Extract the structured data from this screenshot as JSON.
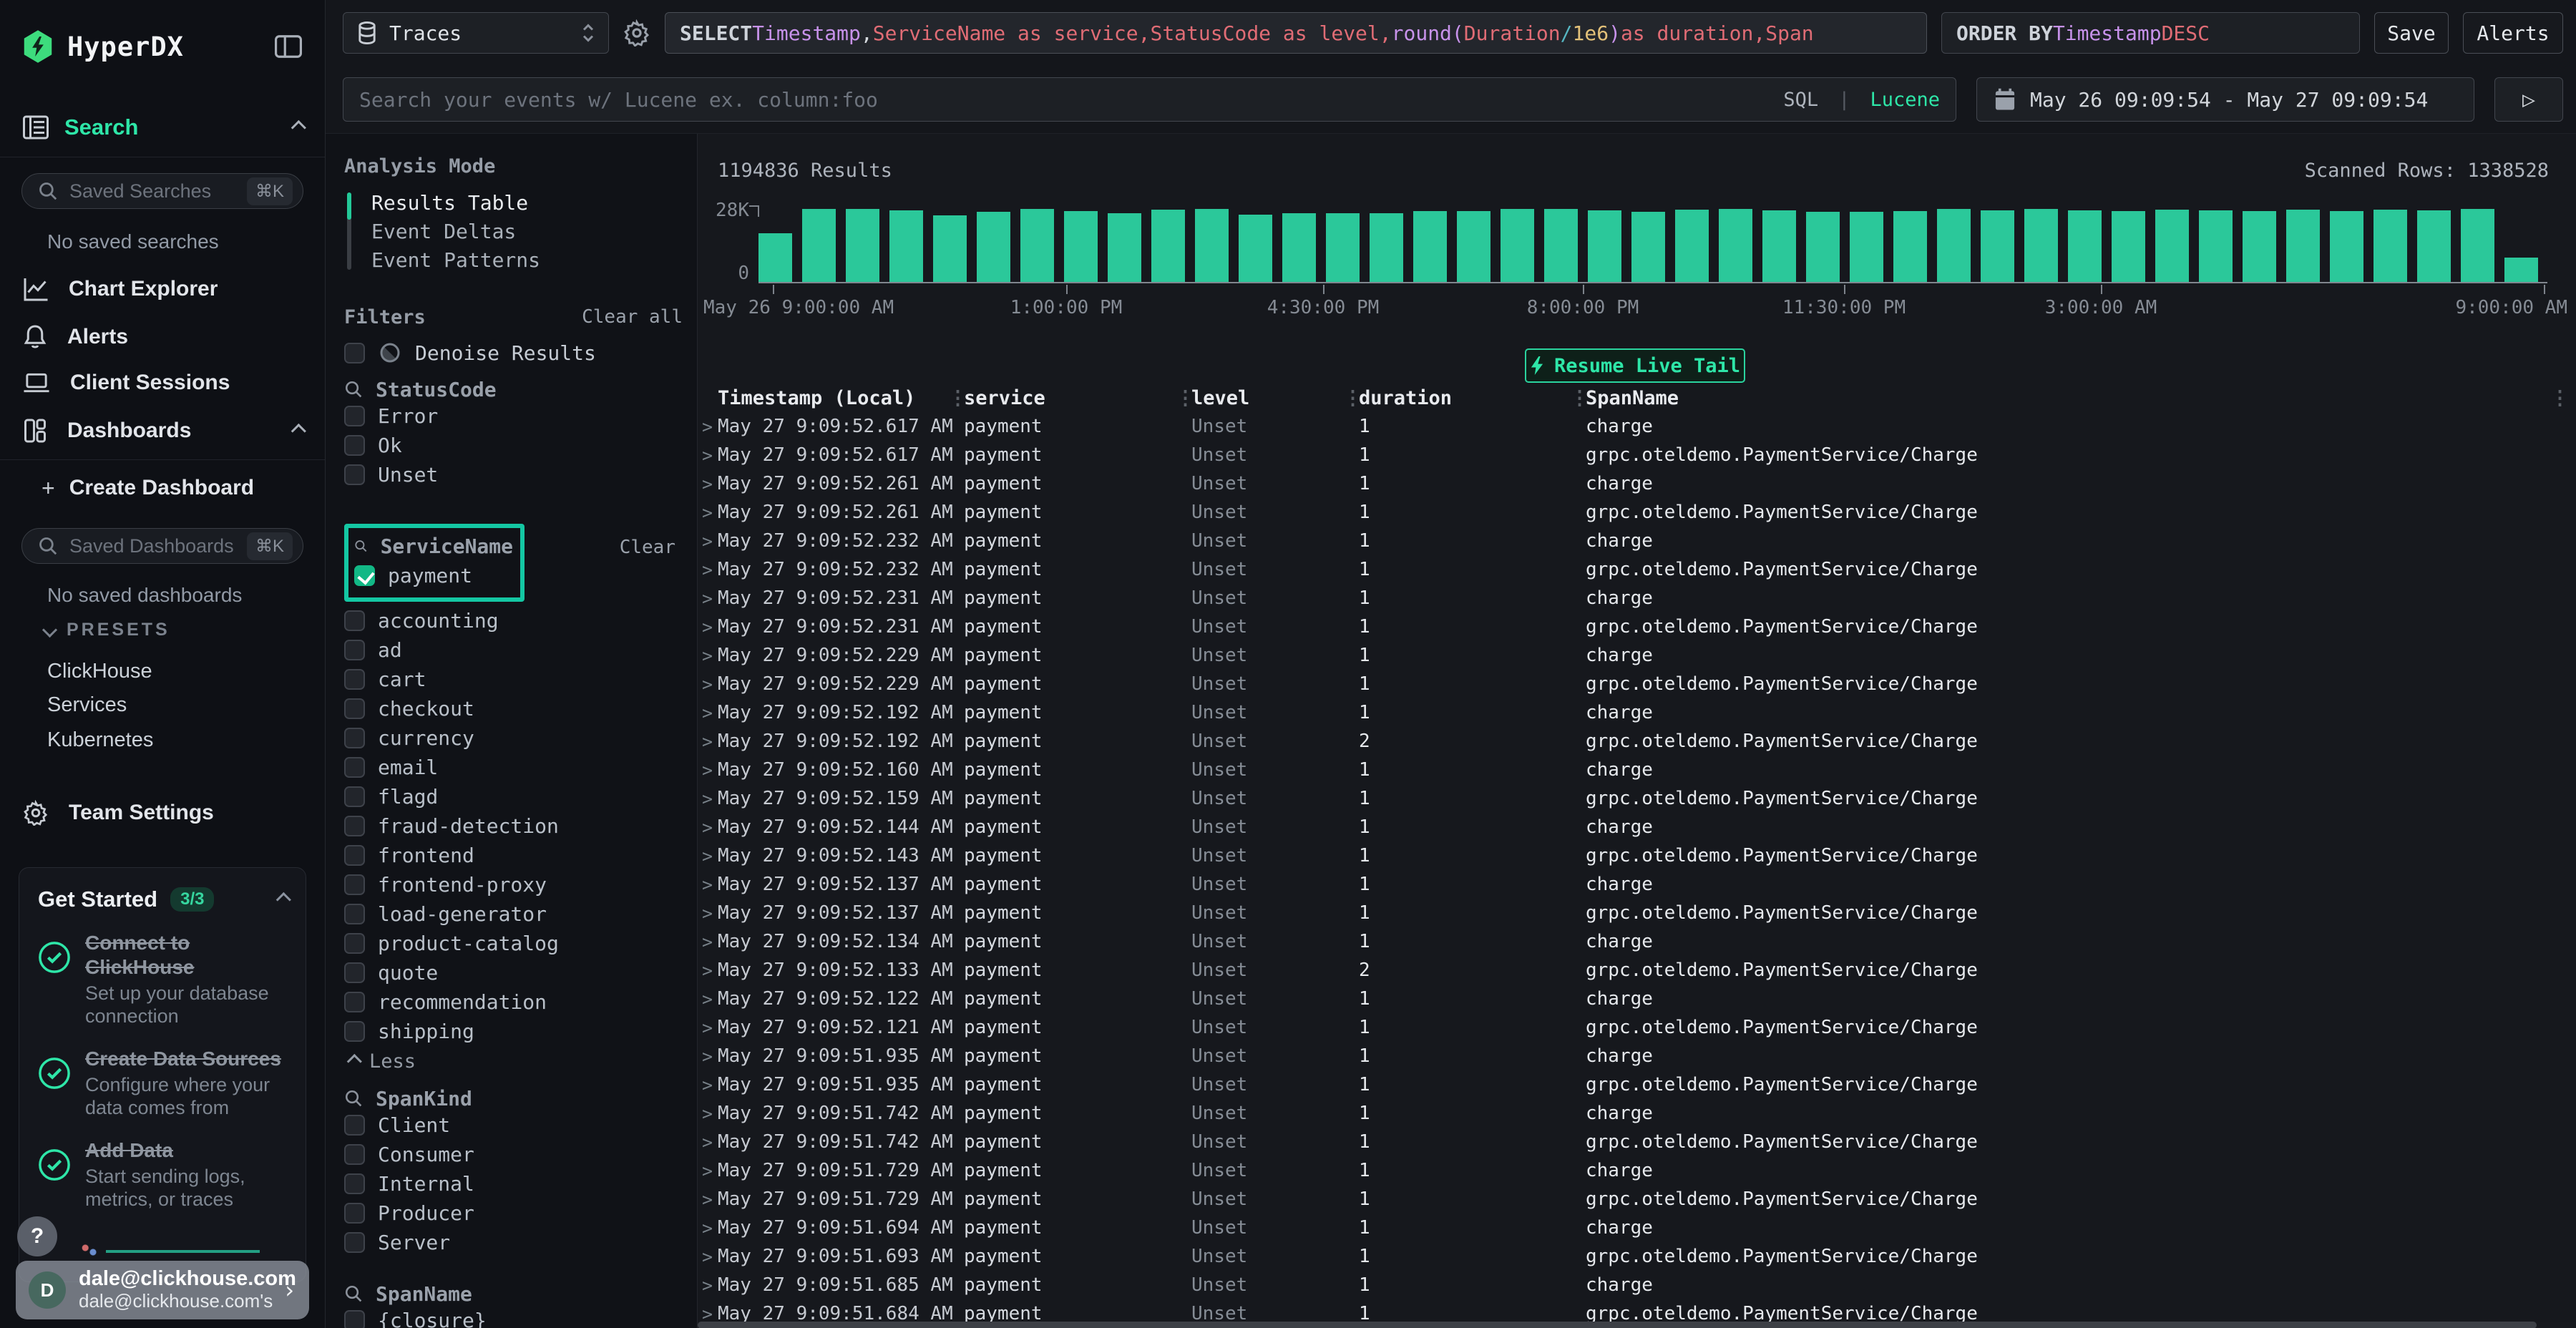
{
  "sidebar": {
    "brand": "HyperDX",
    "search_section": "Search",
    "saved_searches_placeholder": "Saved Searches",
    "saved_dashboards_placeholder": "Saved Dashboards",
    "shortcut": "⌘K",
    "no_saved_searches": "No saved searches",
    "no_saved_dashboards": "No saved dashboards",
    "nav": [
      {
        "label": "Chart Explorer",
        "icon": "chart-icon"
      },
      {
        "label": "Alerts",
        "icon": "bell-icon"
      },
      {
        "label": "Client Sessions",
        "icon": "laptop-icon"
      },
      {
        "label": "Dashboards",
        "icon": "grid-icon",
        "chevron": "up"
      }
    ],
    "create_dashboard_plus": "+",
    "create_dashboard": "Create Dashboard",
    "presets_label": "PRESETS",
    "presets": [
      "ClickHouse",
      "Services",
      "Kubernetes"
    ],
    "team_settings": "Team Settings",
    "get_started": {
      "title": "Get Started",
      "badge": "3/3",
      "steps": [
        {
          "title": "Connect to ClickHouse",
          "subtitle": "Set up your database connection"
        },
        {
          "title": "Create Data Sources",
          "subtitle": "Configure where your data comes from"
        },
        {
          "title": "Add Data",
          "subtitle": "Start sending logs, metrics, or traces"
        }
      ]
    },
    "help_label": "?",
    "user": {
      "initial": "D",
      "email": "dale@clickhouse.com",
      "subtitle": "dale@clickhouse.com's"
    }
  },
  "topbar": {
    "source": "Traces",
    "sql_tokens": [
      {
        "t": "SELECT ",
        "c": "kw"
      },
      {
        "t": "Timestamp",
        "c": "purple"
      },
      {
        "t": ", ",
        "c": "fg"
      },
      {
        "t": "ServiceName as service",
        "c": "red"
      },
      {
        "t": ", ",
        "c": "red"
      },
      {
        "t": "StatusCode as level",
        "c": "red"
      },
      {
        "t": ", ",
        "c": "red"
      },
      {
        "t": "round",
        "c": "purple"
      },
      {
        "t": "(",
        "c": "purple"
      },
      {
        "t": "Duration",
        "c": "red"
      },
      {
        "t": " / ",
        "c": "cyan"
      },
      {
        "t": "1e6",
        "c": "yellow"
      },
      {
        "t": ")",
        "c": "purple"
      },
      {
        "t": " as duration",
        "c": "red"
      },
      {
        "t": ", ",
        "c": "red"
      },
      {
        "t": "Span",
        "c": "red"
      }
    ],
    "order_tokens": [
      {
        "t": "ORDER BY ",
        "c": "kw"
      },
      {
        "t": "Timestamp ",
        "c": "purple"
      },
      {
        "t": "DESC",
        "c": "red"
      }
    ],
    "save": "Save",
    "alerts": "Alerts",
    "search_placeholder": "Search your events w/ Lucene ex. column:foo",
    "mode_sql": "SQL",
    "mode_divider": "|",
    "mode_lucene": "Lucene",
    "date_range": "May 26 09:09:54 - May 27 09:09:54",
    "play": "▷"
  },
  "analysis": {
    "title": "Analysis Mode",
    "modes": [
      "Results Table",
      "Event Deltas",
      "Event Patterns"
    ],
    "active_index": 0
  },
  "filters": {
    "title": "Filters",
    "clear_all": "Clear all",
    "denoise": "Denoise Results",
    "statuscode": {
      "name": "StatusCode",
      "items": [
        "Error",
        "Ok",
        "Unset"
      ]
    },
    "servicename": {
      "name": "ServiceName",
      "clear": "Clear",
      "checked_item": "payment",
      "items": [
        "accounting",
        "ad",
        "cart",
        "checkout",
        "currency",
        "email",
        "flagd",
        "fraud-detection",
        "frontend",
        "frontend-proxy",
        "load-generator",
        "product-catalog",
        "quote",
        "recommendation",
        "shipping"
      ],
      "collapse": "Less"
    },
    "spankind": {
      "name": "SpanKind",
      "items": [
        "Client",
        "Consumer",
        "Internal",
        "Producer",
        "Server"
      ]
    },
    "spanname": {
      "name": "SpanName",
      "items": [
        "{closure}"
      ]
    }
  },
  "results": {
    "count": "1194836 Results",
    "scanned": "Scanned Rows: 1338528",
    "live_tail": "Resume Live Tail"
  },
  "chart_data": {
    "type": "bar",
    "title": "Events over time histogram",
    "ylabel": "",
    "xlabel": "",
    "ylim": [
      0,
      28000
    ],
    "ymax_label": "28K",
    "ymin_label": "0",
    "grid": false,
    "legend": "none",
    "bar_color": "#2bc89a",
    "values_k": [
      18.5,
      27.6,
      27.6,
      27.2,
      25.2,
      26.6,
      27.6,
      26.8,
      26.2,
      27.4,
      27.6,
      25.6,
      26.2,
      26.2,
      26.2,
      27,
      27,
      27.6,
      27.6,
      27.2,
      26.6,
      27.4,
      27.6,
      27.2,
      26.6,
      26.6,
      27,
      27.6,
      27.2,
      27.6,
      27.2,
      27,
      27.4,
      27.2,
      27,
      27.4,
      27,
      27.4,
      27.2,
      27.8,
      9.3
    ],
    "xticks": [
      {
        "label": "May 26 9:00:00 AM",
        "x": 20,
        "align": "start"
      },
      {
        "label": "1:00:00 PM",
        "x": 430,
        "align": "center"
      },
      {
        "label": "4:30:00 PM",
        "x": 789,
        "align": "center"
      },
      {
        "label": "8:00:00 PM",
        "x": 1152,
        "align": "center"
      },
      {
        "label": "11:30:00 PM",
        "x": 1517,
        "align": "center"
      },
      {
        "label": "3:00:00 AM",
        "x": 1876,
        "align": "center"
      },
      {
        "label": "9:00:00 AM",
        "x": 2495,
        "align": "end"
      }
    ]
  },
  "table": {
    "columns": [
      "Timestamp (Local)",
      "service",
      "level",
      "duration",
      "SpanName"
    ],
    "rows": [
      {
        "ts": "May 27 9:09:52.617 AM",
        "service": "payment",
        "level": "Unset",
        "duration": "1",
        "span": "charge"
      },
      {
        "ts": "May 27 9:09:52.617 AM",
        "service": "payment",
        "level": "Unset",
        "duration": "1",
        "span": "grpc.oteldemo.PaymentService/Charge"
      },
      {
        "ts": "May 27 9:09:52.261 AM",
        "service": "payment",
        "level": "Unset",
        "duration": "1",
        "span": "charge"
      },
      {
        "ts": "May 27 9:09:52.261 AM",
        "service": "payment",
        "level": "Unset",
        "duration": "1",
        "span": "grpc.oteldemo.PaymentService/Charge"
      },
      {
        "ts": "May 27 9:09:52.232 AM",
        "service": "payment",
        "level": "Unset",
        "duration": "1",
        "span": "charge"
      },
      {
        "ts": "May 27 9:09:52.232 AM",
        "service": "payment",
        "level": "Unset",
        "duration": "1",
        "span": "grpc.oteldemo.PaymentService/Charge"
      },
      {
        "ts": "May 27 9:09:52.231 AM",
        "service": "payment",
        "level": "Unset",
        "duration": "1",
        "span": "charge"
      },
      {
        "ts": "May 27 9:09:52.231 AM",
        "service": "payment",
        "level": "Unset",
        "duration": "1",
        "span": "grpc.oteldemo.PaymentService/Charge"
      },
      {
        "ts": "May 27 9:09:52.229 AM",
        "service": "payment",
        "level": "Unset",
        "duration": "1",
        "span": "charge"
      },
      {
        "ts": "May 27 9:09:52.229 AM",
        "service": "payment",
        "level": "Unset",
        "duration": "1",
        "span": "grpc.oteldemo.PaymentService/Charge"
      },
      {
        "ts": "May 27 9:09:52.192 AM",
        "service": "payment",
        "level": "Unset",
        "duration": "1",
        "span": "charge"
      },
      {
        "ts": "May 27 9:09:52.192 AM",
        "service": "payment",
        "level": "Unset",
        "duration": "2",
        "span": "grpc.oteldemo.PaymentService/Charge"
      },
      {
        "ts": "May 27 9:09:52.160 AM",
        "service": "payment",
        "level": "Unset",
        "duration": "1",
        "span": "charge"
      },
      {
        "ts": "May 27 9:09:52.159 AM",
        "service": "payment",
        "level": "Unset",
        "duration": "1",
        "span": "grpc.oteldemo.PaymentService/Charge"
      },
      {
        "ts": "May 27 9:09:52.144 AM",
        "service": "payment",
        "level": "Unset",
        "duration": "1",
        "span": "charge"
      },
      {
        "ts": "May 27 9:09:52.143 AM",
        "service": "payment",
        "level": "Unset",
        "duration": "1",
        "span": "grpc.oteldemo.PaymentService/Charge"
      },
      {
        "ts": "May 27 9:09:52.137 AM",
        "service": "payment",
        "level": "Unset",
        "duration": "1",
        "span": "charge"
      },
      {
        "ts": "May 27 9:09:52.137 AM",
        "service": "payment",
        "level": "Unset",
        "duration": "1",
        "span": "grpc.oteldemo.PaymentService/Charge"
      },
      {
        "ts": "May 27 9:09:52.134 AM",
        "service": "payment",
        "level": "Unset",
        "duration": "1",
        "span": "charge"
      },
      {
        "ts": "May 27 9:09:52.133 AM",
        "service": "payment",
        "level": "Unset",
        "duration": "2",
        "span": "grpc.oteldemo.PaymentService/Charge"
      },
      {
        "ts": "May 27 9:09:52.122 AM",
        "service": "payment",
        "level": "Unset",
        "duration": "1",
        "span": "charge"
      },
      {
        "ts": "May 27 9:09:52.121 AM",
        "service": "payment",
        "level": "Unset",
        "duration": "1",
        "span": "grpc.oteldemo.PaymentService/Charge"
      },
      {
        "ts": "May 27 9:09:51.935 AM",
        "service": "payment",
        "level": "Unset",
        "duration": "1",
        "span": "charge"
      },
      {
        "ts": "May 27 9:09:51.935 AM",
        "service": "payment",
        "level": "Unset",
        "duration": "1",
        "span": "grpc.oteldemo.PaymentService/Charge"
      },
      {
        "ts": "May 27 9:09:51.742 AM",
        "service": "payment",
        "level": "Unset",
        "duration": "1",
        "span": "charge"
      },
      {
        "ts": "May 27 9:09:51.742 AM",
        "service": "payment",
        "level": "Unset",
        "duration": "1",
        "span": "grpc.oteldemo.PaymentService/Charge"
      },
      {
        "ts": "May 27 9:09:51.729 AM",
        "service": "payment",
        "level": "Unset",
        "duration": "1",
        "span": "charge"
      },
      {
        "ts": "May 27 9:09:51.729 AM",
        "service": "payment",
        "level": "Unset",
        "duration": "1",
        "span": "grpc.oteldemo.PaymentService/Charge"
      },
      {
        "ts": "May 27 9:09:51.694 AM",
        "service": "payment",
        "level": "Unset",
        "duration": "1",
        "span": "charge"
      },
      {
        "ts": "May 27 9:09:51.693 AM",
        "service": "payment",
        "level": "Unset",
        "duration": "1",
        "span": "grpc.oteldemo.PaymentService/Charge"
      },
      {
        "ts": "May 27 9:09:51.685 AM",
        "service": "payment",
        "level": "Unset",
        "duration": "1",
        "span": "charge"
      },
      {
        "ts": "May 27 9:09:51.684 AM",
        "service": "payment",
        "level": "Unset",
        "duration": "1",
        "span": "grpc.oteldemo.PaymentService/Charge"
      }
    ]
  }
}
